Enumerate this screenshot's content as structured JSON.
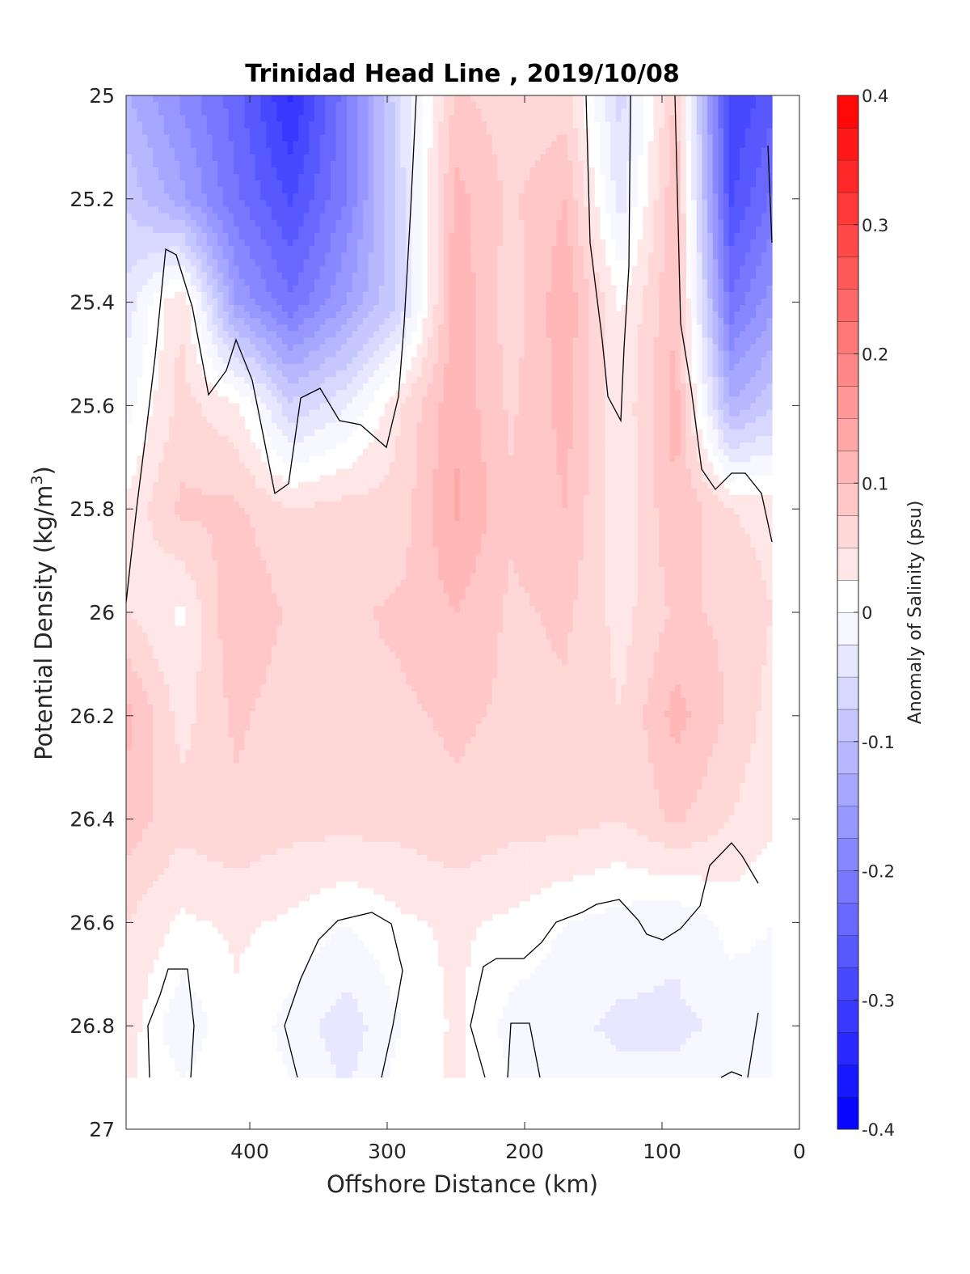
{
  "chart_data": {
    "type": "heatmap",
    "subtype": "filled-contour section",
    "title": "Trinidad Head Line , 2019/10/08",
    "xlabel": "Offshore Distance (km)",
    "ylabel_main": "Potential Density (kg/m",
    "ylabel_sup": "3",
    "ylabel_close": ")",
    "x_axis": {
      "range": [
        490,
        0
      ],
      "reversed": true,
      "ticks": [
        400,
        300,
        200,
        100,
        0
      ],
      "tick_labels": [
        "400",
        "300",
        "200",
        "100",
        "0"
      ]
    },
    "y_axis": {
      "range": [
        25,
        27
      ],
      "reversed": true,
      "ticks": [
        25,
        25.2,
        25.4,
        25.6,
        25.8,
        26,
        26.2,
        26.4,
        26.6,
        26.8,
        27
      ],
      "tick_labels": [
        "25",
        "25.2",
        "25.4",
        "25.6",
        "25.8",
        "26",
        "26.2",
        "26.4",
        "26.6",
        "26.8",
        "27"
      ]
    },
    "colorbar": {
      "label": "Anomaly of Salinity (psu)",
      "range": [
        -0.4,
        0.4
      ],
      "step": 0.025,
      "ticks": [
        0.4,
        0.3,
        0.2,
        0.1,
        0,
        -0.1,
        -0.2,
        -0.3,
        -0.4
      ],
      "tick_labels": [
        "0.4",
        "0.3",
        "0.2",
        "0.1",
        "0",
        "-0.1",
        "-0.2",
        "-0.3",
        "-0.4"
      ],
      "colormap": "blue-white-red",
      "negative_color": "#0000ff",
      "zero_color": "#ffffff",
      "positive_color": "#ff0000"
    },
    "zero_contour": "black line at anomaly 0",
    "data_x_km": [
      490,
      450,
      410,
      370,
      330,
      290,
      250,
      210,
      170,
      130,
      90,
      50,
      20
    ],
    "data_y_density": [
      25.0,
      25.2,
      25.4,
      25.6,
      25.8,
      26.0,
      26.2,
      26.4,
      26.6,
      26.8,
      26.9
    ],
    "values": [
      [
        -0.12,
        -0.18,
        -0.24,
        -0.33,
        -0.21,
        -0.05,
        0.08,
        0.06,
        0.06,
        -0.06,
        0.08,
        -0.3,
        -0.26
      ],
      [
        -0.08,
        -0.14,
        -0.22,
        -0.28,
        -0.2,
        -0.06,
        0.11,
        0.07,
        0.1,
        -0.04,
        0.1,
        -0.28,
        -0.22
      ],
      [
        -0.04,
        0.05,
        -0.15,
        -0.22,
        -0.15,
        -0.07,
        0.12,
        0.06,
        0.12,
        0.02,
        0.1,
        -0.22,
        -0.16
      ],
      [
        -0.01,
        0.06,
        0.03,
        -0.07,
        -0.03,
        0.05,
        0.12,
        0.07,
        0.11,
        0.03,
        0.11,
        -0.12,
        -0.08
      ],
      [
        0.03,
        0.08,
        0.08,
        0.05,
        0.06,
        0.06,
        0.13,
        0.08,
        0.1,
        0.03,
        0.1,
        0.05,
        0.04
      ],
      [
        0.05,
        0.02,
        0.1,
        0.07,
        0.07,
        0.08,
        0.1,
        0.07,
        0.08,
        0.04,
        0.08,
        0.07,
        0.05
      ],
      [
        0.11,
        0.04,
        0.08,
        0.06,
        0.07,
        0.07,
        0.08,
        0.07,
        0.07,
        0.05,
        0.11,
        0.07,
        0.04
      ],
      [
        0.09,
        0.06,
        0.07,
        0.06,
        0.06,
        0.06,
        0.07,
        0.06,
        0.06,
        0.05,
        0.08,
        0.05,
        0.03
      ],
      [
        0.05,
        0.02,
        0.03,
        0.02,
        0.0,
        0.02,
        0.03,
        0.02,
        0.0,
        -0.01,
        -0.02,
        0.01,
        0.0
      ],
      [
        0.04,
        -0.02,
        0.02,
        -0.01,
        -0.04,
        0.0,
        0.03,
        -0.01,
        -0.02,
        -0.03,
        -0.03,
        -0.02,
        -0.01
      ],
      [
        0.03,
        0.0,
        0.02,
        0.0,
        -0.03,
        0.01,
        0.03,
        0.0,
        -0.01,
        -0.02,
        -0.02,
        -0.01,
        0.0
      ]
    ],
    "grid": false,
    "legend": "colorbar right"
  }
}
